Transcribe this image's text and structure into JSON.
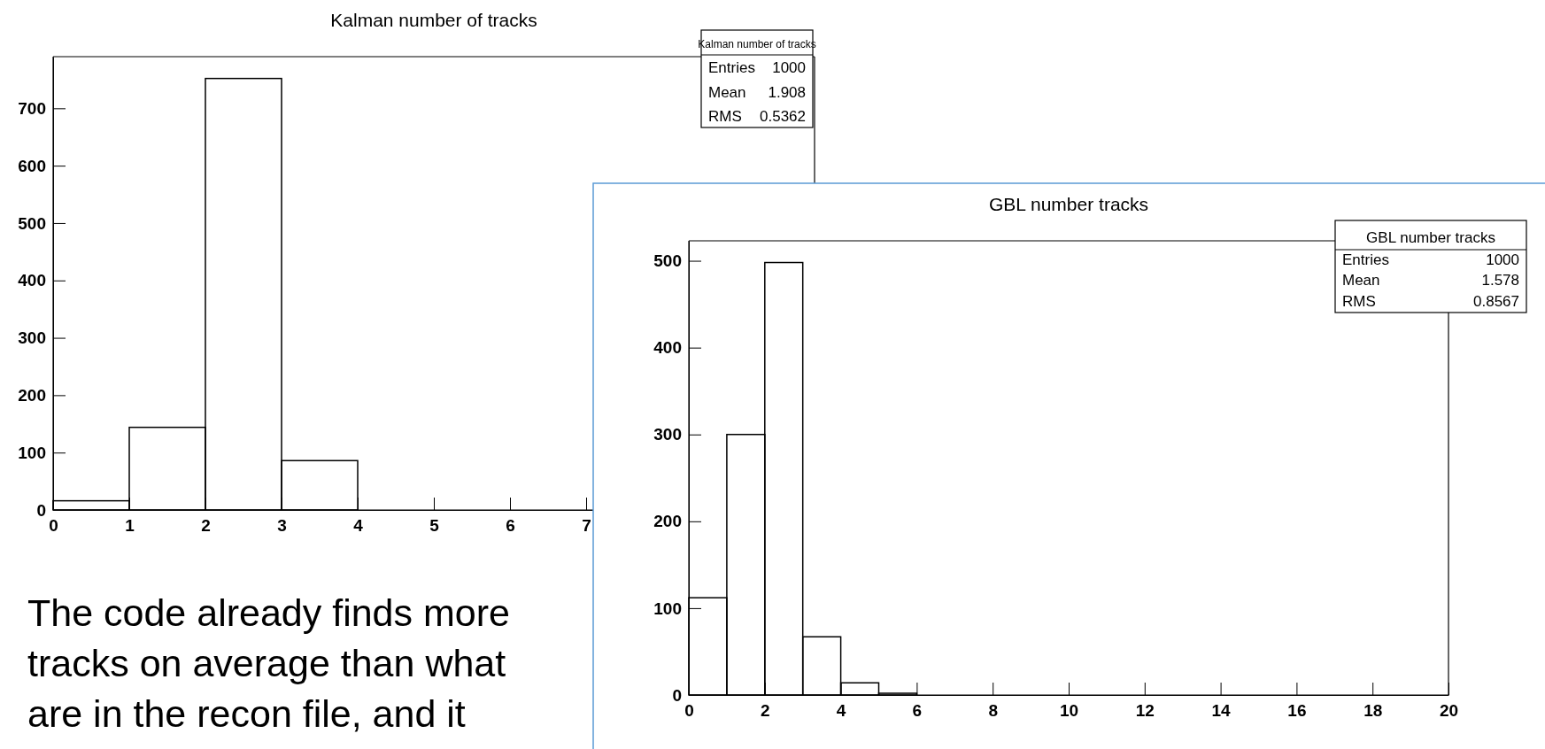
{
  "chart_data": [
    {
      "type": "histogram",
      "title": "Kalman number of tracks",
      "bins": [
        0,
        1,
        2,
        3,
        4,
        5,
        6,
        7
      ],
      "values": [
        16,
        144,
        752,
        86,
        0,
        0,
        0
      ],
      "color": "#000000",
      "xlim": [
        0,
        10
      ],
      "xticks": [
        0,
        1,
        2,
        3,
        4,
        5,
        6,
        7
      ],
      "ylim": [
        0,
        790
      ],
      "yticks": [
        0,
        100,
        200,
        300,
        400,
        500,
        600,
        700
      ],
      "annotations": [
        "Kalman number of tracks",
        "Entries 1000",
        "Mean 1.908",
        "RMS 0.5362",
        "The code already finds more tracks on average than what are in the recon file, and it"
      ]
    },
    {
      "type": "histogram",
      "title": "GBL number tracks",
      "bins": [
        0,
        1,
        2,
        3,
        4,
        5,
        6
      ],
      "values": [
        112,
        300,
        498,
        67,
        14,
        2
      ],
      "color": "#000000",
      "xlim": [
        0,
        20
      ],
      "xticks": [
        0,
        2,
        4,
        6,
        8,
        10,
        12,
        14,
        16,
        18,
        20
      ],
      "ylim": [
        0,
        523
      ],
      "yticks": [
        0,
        100,
        200,
        300,
        400,
        500
      ],
      "annotations": [
        "GBL number tracks",
        "Entries 1000",
        "Mean 1.578",
        "RMS 0.8567"
      ]
    }
  ]
}
